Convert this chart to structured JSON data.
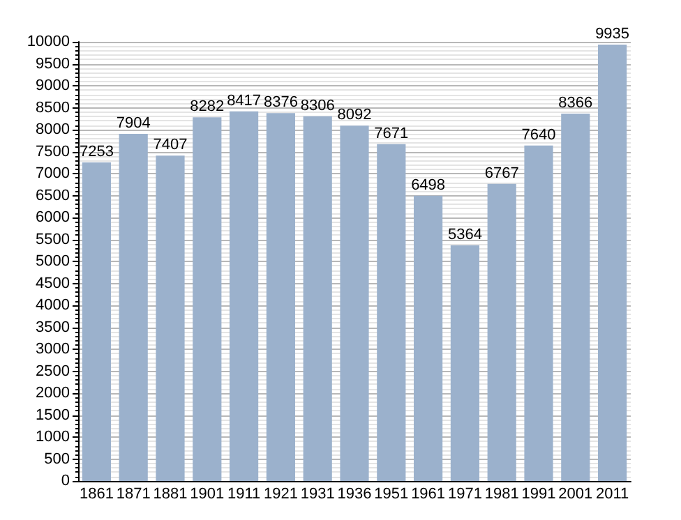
{
  "chart_data": {
    "type": "bar",
    "categories": [
      "1861",
      "1871",
      "1881",
      "1901",
      "1911",
      "1921",
      "1931",
      "1936",
      "1951",
      "1961",
      "1971",
      "1981",
      "1991",
      "2001",
      "2011"
    ],
    "values": [
      7253,
      7904,
      7407,
      8282,
      8417,
      8376,
      8306,
      8092,
      7671,
      6498,
      5364,
      6767,
      7640,
      8366,
      9935
    ],
    "color": "#9bb1cc",
    "data_labels": true,
    "grid": "y",
    "ylim": [
      0,
      10000
    ],
    "yticks": [
      0,
      500,
      1000,
      1500,
      2000,
      2500,
      3000,
      3500,
      4000,
      4500,
      5000,
      5500,
      6000,
      6500,
      7000,
      7500,
      8000,
      8500,
      9000,
      9500,
      10000
    ]
  }
}
